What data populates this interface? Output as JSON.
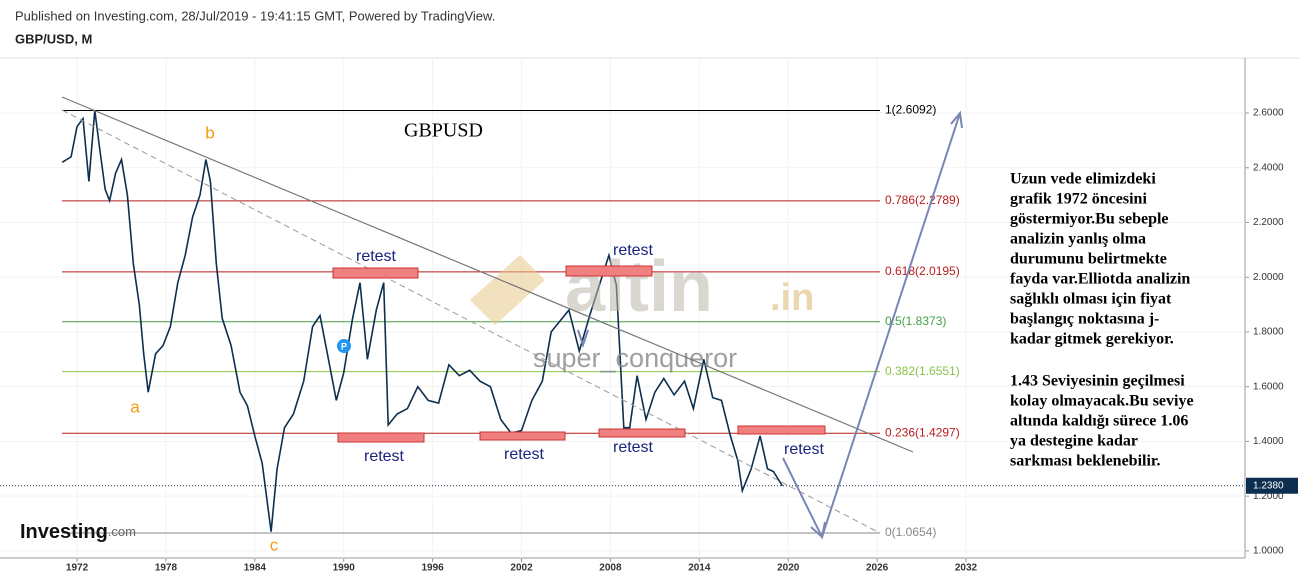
{
  "header": {
    "published": "Published on Investing.com, 28/Jul/2019 - 19:41:15 GMT, Powered by TradingView.",
    "symbol": "GBP/USD, M"
  },
  "chart_data": {
    "type": "line",
    "title": "GBPUSD",
    "color": "#0d2f4f",
    "x": [
      1971.0,
      1971.6,
      1972.0,
      1972.4,
      1972.8,
      1973.2,
      1973.5,
      1973.9,
      1974.2,
      1974.6,
      1975.0,
      1975.4,
      1975.8,
      1976.2,
      1976.5,
      1976.8,
      1977.3,
      1977.8,
      1978.3,
      1978.8,
      1979.3,
      1979.8,
      1980.3,
      1980.7,
      1981.0,
      1981.4,
      1981.8,
      1982.4,
      1983.0,
      1983.5,
      1984.0,
      1984.5,
      1985.1,
      1985.5,
      1986.0,
      1986.6,
      1987.3,
      1987.9,
      1988.4,
      1988.9,
      1989.5,
      1990.0,
      1990.6,
      1991.1,
      1991.6,
      1992.2,
      1992.7,
      1993.0,
      1993.6,
      1994.3,
      1995.0,
      1995.7,
      1996.4,
      1997.1,
      1997.8,
      1998.5,
      1999.2,
      1999.9,
      2000.6,
      2001.3,
      2002.0,
      2002.7,
      2003.4,
      2004.0,
      2004.6,
      2005.2,
      2005.9,
      2006.6,
      2007.3,
      2007.9,
      2008.4,
      2008.9,
      2009.3,
      2009.8,
      2010.4,
      2011.0,
      2011.6,
      2012.3,
      2013.0,
      2013.6,
      2014.3,
      2014.9,
      2015.5,
      2016.1,
      2016.6,
      2016.9,
      2017.5,
      2018.1,
      2018.6,
      2019.0,
      2019.6
    ],
    "values": [
      2.42,
      2.44,
      2.55,
      2.58,
      2.35,
      2.61,
      2.48,
      2.32,
      2.28,
      2.38,
      2.43,
      2.3,
      2.05,
      1.9,
      1.72,
      1.58,
      1.72,
      1.75,
      1.82,
      1.98,
      2.08,
      2.22,
      2.3,
      2.43,
      2.35,
      2.05,
      1.85,
      1.75,
      1.58,
      1.53,
      1.42,
      1.32,
      1.07,
      1.3,
      1.45,
      1.5,
      1.62,
      1.82,
      1.86,
      1.72,
      1.55,
      1.65,
      1.85,
      1.98,
      1.7,
      1.88,
      1.98,
      1.46,
      1.5,
      1.52,
      1.6,
      1.55,
      1.54,
      1.68,
      1.64,
      1.66,
      1.62,
      1.6,
      1.48,
      1.43,
      1.44,
      1.55,
      1.62,
      1.8,
      1.84,
      1.88,
      1.73,
      1.86,
      1.98,
      2.08,
      1.97,
      1.45,
      1.45,
      1.64,
      1.48,
      1.58,
      1.63,
      1.57,
      1.62,
      1.52,
      1.7,
      1.56,
      1.55,
      1.42,
      1.33,
      1.22,
      1.3,
      1.42,
      1.3,
      1.29,
      1.238
    ],
    "xlim": [
      1966.8,
      2050.83
    ],
    "ylim": [
      0.974,
      2.801
    ],
    "xticks": [
      1972,
      1978,
      1984,
      1990,
      1996,
      2002,
      2008,
      2014,
      2020,
      2026,
      2032
    ],
    "yticks": [
      {
        "value": 1.0,
        "label": "1.0000"
      },
      {
        "value": 1.2,
        "label": "1.2000"
      },
      {
        "value": 1.4,
        "label": "1.4000"
      },
      {
        "value": 1.6,
        "label": "1.6000"
      },
      {
        "value": 1.8,
        "label": "1.8000"
      },
      {
        "value": 2.0,
        "label": "2.0000"
      },
      {
        "value": 2.2,
        "label": "2.2000"
      },
      {
        "value": 2.4,
        "label": "2.4000"
      },
      {
        "value": 2.6,
        "label": "2.6000"
      }
    ],
    "fib_levels": [
      {
        "value": 2.6092,
        "label": "1(2.6092)",
        "color": "#000000"
      },
      {
        "value": 2.2789,
        "label": "0.786(2.2789)",
        "color": "#b71c1c"
      },
      {
        "value": 2.0195,
        "label": "0.618(2.0195)",
        "color": "#b71c1c"
      },
      {
        "value": 1.8373,
        "label": "0.5(1.8373)",
        "color": "#43a047"
      },
      {
        "value": 1.6551,
        "label": "0.382(1.6551)",
        "color": "#8bc34a"
      },
      {
        "value": 1.4297,
        "label": "0.236(1.4297)",
        "color": "#b71c1c"
      },
      {
        "value": 1.0654,
        "label": "0(1.0654)",
        "color": "#888888"
      }
    ],
    "last_price": {
      "value": 1.238,
      "label": "1.2380"
    },
    "waves": [
      "a",
      "b",
      "c"
    ],
    "retest": [
      "retest",
      "retest",
      "retest",
      "retest",
      "retest",
      "retest"
    ],
    "marker": "P"
  },
  "note": [
    "Uzun vede elimizdeki",
    "grafik 1972 öncesini",
    "göstermiyor.Bu sebeple",
    "analizin yanlış olma",
    "durumunu belirtmekte",
    "fayda var.Elliotda analizin",
    "sağlıklı olması için fiyat",
    "başlangıç noktasına j-",
    "kadar gitmek gerekiyor.",
    "1.43 Seviyesinin geçilmesi",
    "kolay olmayacak.Bu seviye",
    "altında kaldığı sürece 1.06",
    "ya destegine kadar",
    "sarkması beklenebilir."
  ],
  "watermark": {
    "brand": "altin",
    "suffix": ".in",
    "user": "super_conqueror"
  },
  "logo": {
    "name": "Investing",
    "suffix": ".com"
  }
}
